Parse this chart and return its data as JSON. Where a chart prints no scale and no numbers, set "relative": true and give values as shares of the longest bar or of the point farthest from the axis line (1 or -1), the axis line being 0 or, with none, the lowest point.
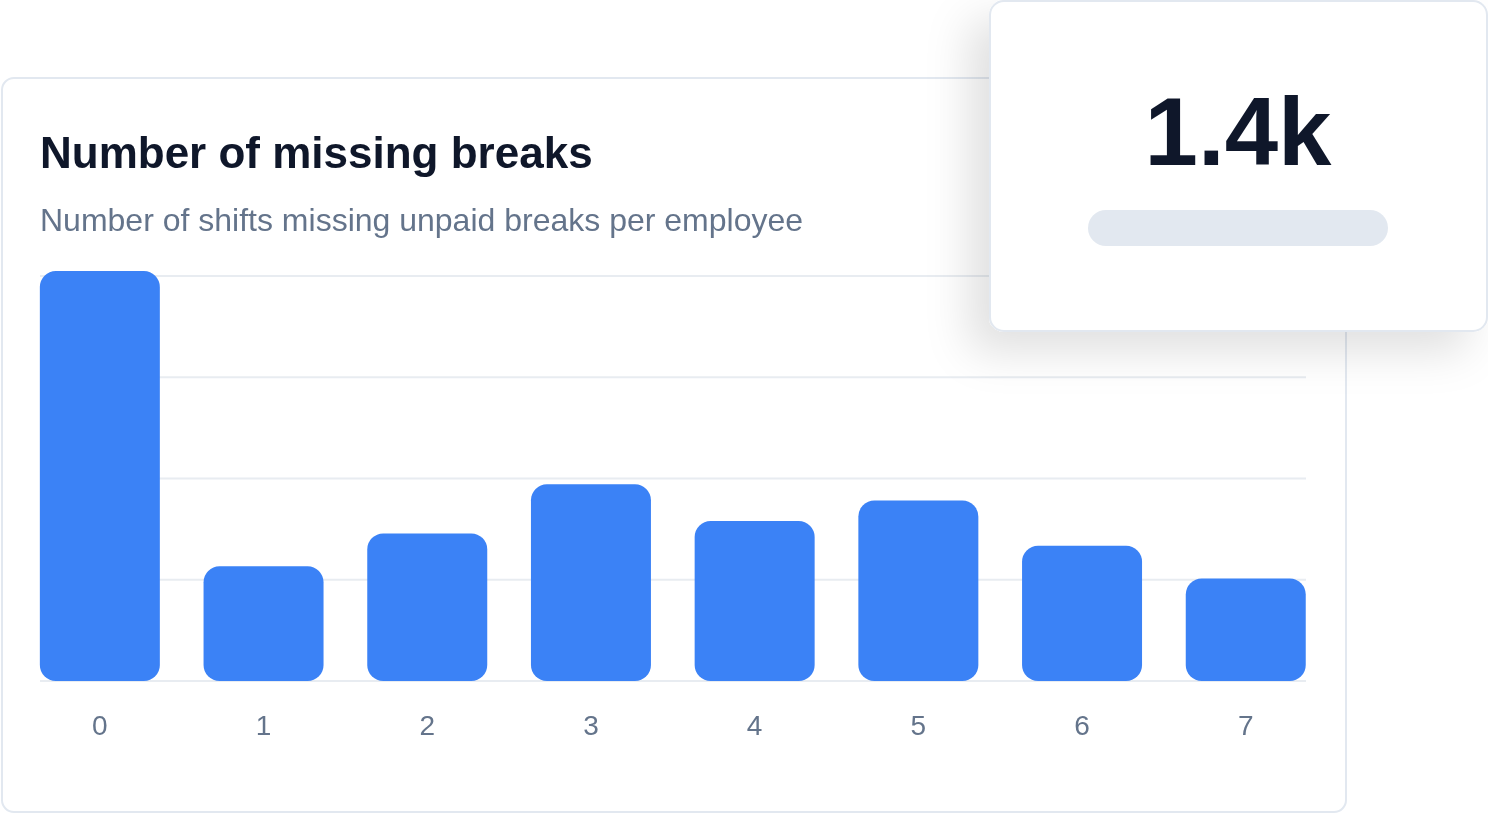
{
  "chart_data": [
    {
      "type": "bar",
      "title": "Number of missing breaks",
      "subtitle": "Number of shifts missing unpaid breaks per employee",
      "categories": [
        "0",
        "1",
        "2",
        "3",
        "4",
        "5",
        "6",
        "7"
      ],
      "values": [
        1,
        0.28,
        0.36,
        0.48,
        0.39,
        0.44,
        0.33,
        0.25
      ],
      "color": "#3b82f6",
      "relative": true,
      "grid": true
    },
    {
      "type": "other",
      "title": "1.4k"
    }
  ]
}
